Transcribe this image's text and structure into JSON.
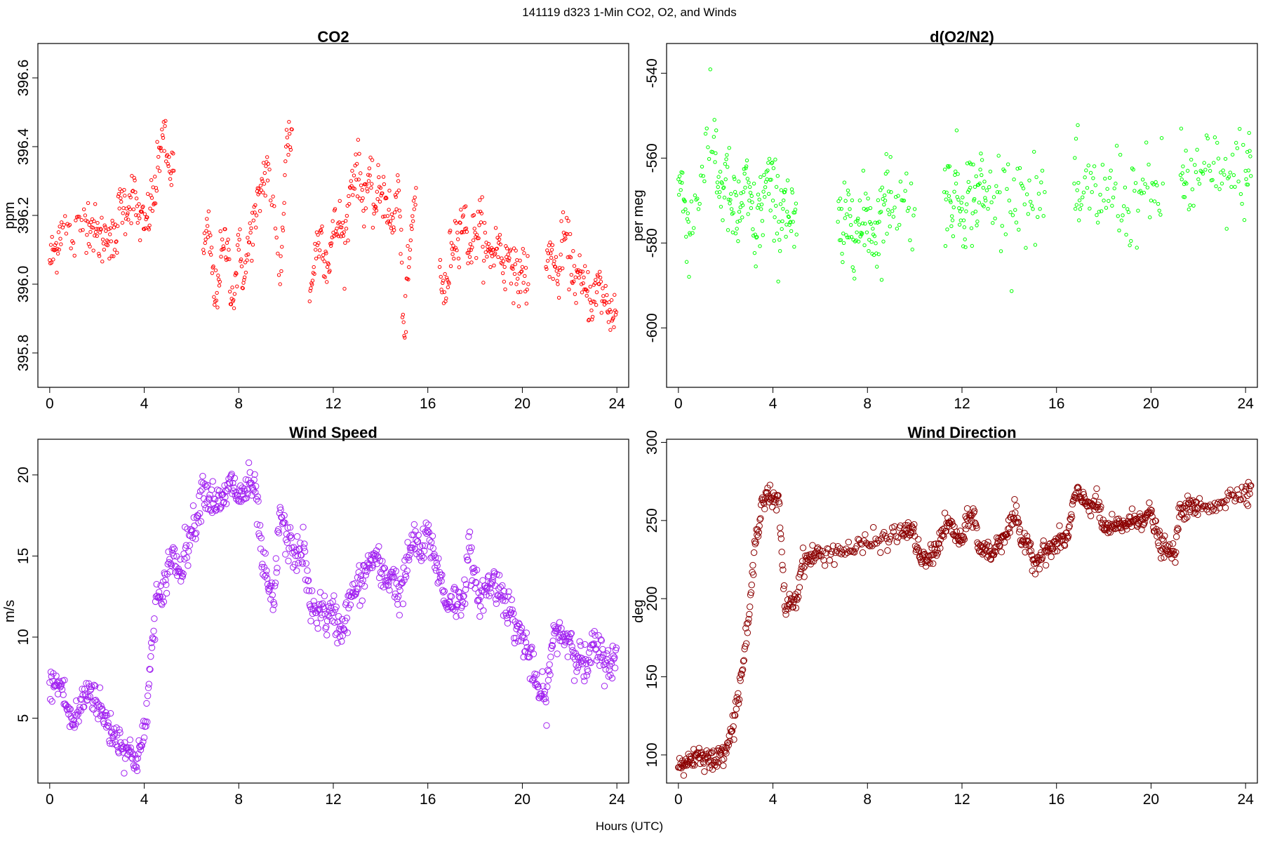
{
  "figure_title": "141119   d323   1-Min CO2, O2, and Winds",
  "x_axis_label": "Hours (UTC)",
  "chart_data": [
    {
      "type": "scatter",
      "title": "CO2",
      "xlabel": "",
      "ylabel": "ppm",
      "color": "#ff0000",
      "marker": "small-circle",
      "xlim": [
        -0.5,
        24.5
      ],
      "ylim": [
        395.7,
        396.7
      ],
      "xticks": [
        0,
        4,
        8,
        12,
        16,
        20,
        24
      ],
      "yticks": [
        395.8,
        396.0,
        396.2,
        396.4,
        396.6
      ],
      "ytick_labels": [
        "395.8",
        "396.0",
        "396.2",
        "396.4",
        "396.6"
      ],
      "grid": false,
      "series": [
        {
          "x": [
            0.0,
            0.25,
            0.5,
            1.0,
            1.5,
            1.75,
            2.0,
            2.25,
            2.5,
            2.75,
            3.0,
            3.25,
            3.5,
            3.75,
            4.0,
            4.25,
            4.5,
            4.75,
            5.0,
            5.25,
            6.5,
            6.75,
            7.0,
            7.25,
            7.5,
            7.75,
            8.0,
            8.25,
            8.5,
            8.75,
            9.0,
            9.25,
            9.75,
            10.0,
            10.25,
            11.0,
            11.25,
            11.5,
            11.75,
            12.0,
            12.25,
            12.5,
            12.75,
            13.0,
            13.25,
            13.5,
            13.75,
            14.0,
            14.25,
            14.5,
            14.75,
            15.0,
            15.25,
            15.5,
            16.5,
            16.75,
            17.0,
            17.25,
            17.5,
            17.75,
            18.0,
            18.25,
            18.5,
            18.75,
            19.0,
            19.25,
            19.5,
            19.75,
            20.0,
            20.25,
            21.0,
            21.25,
            21.5,
            21.75,
            22.0,
            22.25,
            22.5,
            22.75,
            23.0,
            23.25,
            23.5,
            23.75
          ],
          "y": [
            396.07,
            396.1,
            396.18,
            396.12,
            396.2,
            396.18,
            396.14,
            396.13,
            396.16,
            396.1,
            396.25,
            396.22,
            396.27,
            396.2,
            396.16,
            396.22,
            396.28,
            396.45,
            396.35,
            396.33,
            396.1,
            396.15,
            395.95,
            396.08,
            396.12,
            395.95,
            396.1,
            396.02,
            396.15,
            396.2,
            396.3,
            396.35,
            396.0,
            396.4,
            396.45,
            395.95,
            396.1,
            396.15,
            396.05,
            396.15,
            396.18,
            396.12,
            396.3,
            396.35,
            396.25,
            396.3,
            396.22,
            396.28,
            396.25,
            396.15,
            396.3,
            395.85,
            396.1,
            396.28,
            396.05,
            395.95,
            396.12,
            396.15,
            396.2,
            396.1,
            396.15,
            396.18,
            396.08,
            396.1,
            396.12,
            396.05,
            396.1,
            396.0,
            396.05,
            396.0,
            396.05,
            396.1,
            396.0,
            396.15,
            396.08,
            396.02,
            396.0,
            395.98,
            395.95,
            396.0,
            395.95,
            395.92
          ]
        }
      ]
    },
    {
      "type": "scatter",
      "title": "d(O2/N2)",
      "xlabel": "",
      "ylabel": "per meg",
      "color": "#00ff00",
      "marker": "small-circle",
      "xlim": [
        -0.5,
        24.5
      ],
      "ylim": [
        -614,
        -533
      ],
      "xticks": [
        0,
        4,
        8,
        12,
        16,
        20,
        24
      ],
      "yticks": [
        -600,
        -580,
        -560,
        -540
      ],
      "ytick_labels": [
        "-600",
        "-580",
        "-560",
        "-540"
      ],
      "grid": false,
      "series": [
        {
          "x": [
            0.0,
            0.25,
            0.5,
            1.0,
            1.5,
            1.75,
            2.0,
            2.25,
            2.5,
            2.75,
            3.0,
            3.25,
            3.5,
            3.75,
            4.0,
            4.25,
            4.5,
            4.75,
            5.0,
            6.75,
            7.0,
            7.25,
            7.5,
            7.75,
            8.0,
            8.25,
            8.5,
            8.75,
            9.0,
            9.5,
            10.0,
            11.25,
            11.5,
            11.75,
            12.0,
            12.25,
            12.5,
            12.75,
            13.0,
            13.5,
            14.0,
            14.5,
            15.0,
            15.5,
            16.75,
            17.0,
            17.5,
            18.0,
            18.5,
            19.0,
            19.5,
            20.0,
            20.5,
            21.25,
            21.5,
            22.0,
            22.5,
            23.0,
            23.5,
            24.0
          ],
          "y": [
            -565,
            -570,
            -578,
            -562,
            -555,
            -568,
            -565,
            -572,
            -575,
            -568,
            -570,
            -578,
            -572,
            -565,
            -570,
            -575,
            -568,
            -575,
            -578,
            -575,
            -580,
            -572,
            -575,
            -578,
            -572,
            -578,
            -575,
            -570,
            -568,
            -570,
            -572,
            -568,
            -570,
            -566,
            -572,
            -568,
            -570,
            -566,
            -570,
            -568,
            -570,
            -566,
            -572,
            -568,
            -566,
            -572,
            -568,
            -570,
            -566,
            -572,
            -568,
            -570,
            -566,
            -564,
            -566,
            -565,
            -563,
            -566,
            -564,
            -563
          ]
        }
      ]
    },
    {
      "type": "scatter",
      "title": "Wind Speed",
      "xlabel": "",
      "ylabel": "m/s",
      "color": "#a020f0",
      "marker": "circle",
      "xlim": [
        -0.5,
        24.5
      ],
      "ylim": [
        1,
        22.2
      ],
      "xticks": [
        0,
        4,
        8,
        12,
        16,
        20,
        24
      ],
      "yticks": [
        5,
        10,
        15,
        20
      ],
      "ytick_labels": [
        "5",
        "10",
        "15",
        "20"
      ],
      "grid": false,
      "series": [
        {
          "x": [
            0.0,
            0.25,
            0.5,
            0.75,
            1.0,
            1.25,
            1.5,
            1.75,
            2.0,
            2.25,
            2.5,
            2.75,
            3.0,
            3.25,
            3.5,
            3.75,
            4.0,
            4.25,
            4.5,
            4.75,
            5.0,
            5.25,
            5.5,
            5.75,
            6.0,
            6.25,
            6.5,
            6.75,
            7.0,
            7.25,
            7.5,
            7.75,
            8.0,
            8.25,
            8.5,
            8.75,
            9.0,
            9.25,
            9.5,
            9.75,
            10.0,
            10.25,
            10.5,
            10.75,
            11.0,
            11.25,
            11.5,
            11.75,
            12.0,
            12.25,
            12.5,
            12.75,
            13.0,
            13.25,
            13.5,
            13.75,
            14.0,
            14.25,
            14.5,
            14.75,
            15.0,
            15.25,
            15.5,
            15.75,
            16.0,
            16.25,
            16.5,
            16.75,
            17.0,
            17.25,
            17.5,
            17.75,
            18.0,
            18.25,
            18.5,
            18.75,
            19.0,
            19.25,
            19.5,
            19.75,
            20.0,
            20.25,
            20.5,
            20.75,
            21.0,
            21.25,
            21.5,
            21.75,
            22.0,
            22.25,
            22.5,
            22.75,
            23.0,
            23.25,
            23.5,
            23.75
          ],
          "y": [
            7.2,
            7.0,
            7.1,
            5.5,
            4.6,
            5.5,
            6.5,
            6.8,
            6.0,
            5.2,
            4.5,
            4.0,
            3.5,
            3.2,
            2.5,
            2.8,
            3.8,
            8.0,
            12.5,
            12.0,
            14.5,
            15.0,
            14.0,
            15.5,
            16.5,
            17.5,
            19.5,
            18.5,
            18.5,
            18.0,
            19.0,
            19.5,
            18.5,
            19.0,
            19.5,
            18.5,
            14.5,
            13.0,
            12.0,
            18.0,
            16.0,
            15.5,
            15.0,
            15.5,
            12.0,
            11.5,
            12.0,
            11.0,
            11.5,
            10.5,
            11.0,
            12.5,
            13.0,
            13.5,
            14.5,
            15.0,
            14.0,
            13.5,
            14.0,
            12.5,
            13.5,
            15.5,
            16.0,
            15.0,
            16.5,
            15.0,
            14.0,
            12.0,
            12.5,
            12.0,
            12.5,
            15.5,
            13.0,
            12.5,
            13.0,
            13.5,
            13.0,
            12.5,
            11.5,
            10.5,
            10.0,
            9.0,
            7.5,
            6.5,
            6.0,
            9.5,
            10.5,
            10.0,
            10.0,
            9.0,
            8.5,
            8.0,
            9.5,
            9.0,
            8.5,
            8.5
          ]
        }
      ]
    },
    {
      "type": "scatter",
      "title": "Wind Direction",
      "xlabel": "",
      "ylabel": "deg",
      "color": "#8b0000",
      "marker": "circle",
      "xlim": [
        -0.5,
        24.5
      ],
      "ylim": [
        82,
        302
      ],
      "xticks": [
        0,
        4,
        8,
        12,
        16,
        20,
        24
      ],
      "yticks": [
        100,
        150,
        200,
        250,
        300
      ],
      "ytick_labels": [
        "100",
        "150",
        "200",
        "250",
        "300"
      ],
      "grid": false,
      "series": [
        {
          "x": [
            0.0,
            0.25,
            0.5,
            0.75,
            1.0,
            1.25,
            1.5,
            1.75,
            2.0,
            2.25,
            2.5,
            2.75,
            3.0,
            3.25,
            3.5,
            3.75,
            4.0,
            4.25,
            4.5,
            4.75,
            5.0,
            5.25,
            5.5,
            5.75,
            6.0,
            6.5,
            7.0,
            7.5,
            8.0,
            8.5,
            9.0,
            9.5,
            9.75,
            10.0,
            10.25,
            10.5,
            10.75,
            11.0,
            11.25,
            11.5,
            11.75,
            12.0,
            12.25,
            12.5,
            12.75,
            13.0,
            13.25,
            13.5,
            13.75,
            14.0,
            14.25,
            14.5,
            14.75,
            15.0,
            15.25,
            15.5,
            15.75,
            16.0,
            16.25,
            16.5,
            16.75,
            17.0,
            17.25,
            17.5,
            17.75,
            18.0,
            18.25,
            18.5,
            18.75,
            19.0,
            19.25,
            19.5,
            19.75,
            20.0,
            20.25,
            20.5,
            20.75,
            21.0,
            21.25,
            21.5,
            21.75,
            22.0,
            22.5,
            23.0,
            23.5,
            24.0
          ],
          "y": [
            92,
            95,
            97,
            100,
            100,
            98,
            95,
            100,
            105,
            115,
            135,
            160,
            190,
            235,
            260,
            268,
            262,
            262,
            195,
            198,
            200,
            224,
            225,
            228,
            228,
            230,
            231,
            232,
            235,
            237,
            240,
            242,
            245,
            240,
            225,
            224,
            228,
            235,
            245,
            248,
            240,
            236,
            250,
            255,
            230,
            232,
            228,
            235,
            240,
            245,
            255,
            235,
            240,
            225,
            225,
            230,
            232,
            235,
            238,
            240,
            265,
            265,
            262,
            260,
            260,
            245,
            245,
            245,
            248,
            248,
            250,
            252,
            252,
            255,
            240,
            232,
            230,
            228,
            258,
            258,
            258,
            258,
            260,
            262,
            266,
            270
          ]
        }
      ]
    }
  ]
}
